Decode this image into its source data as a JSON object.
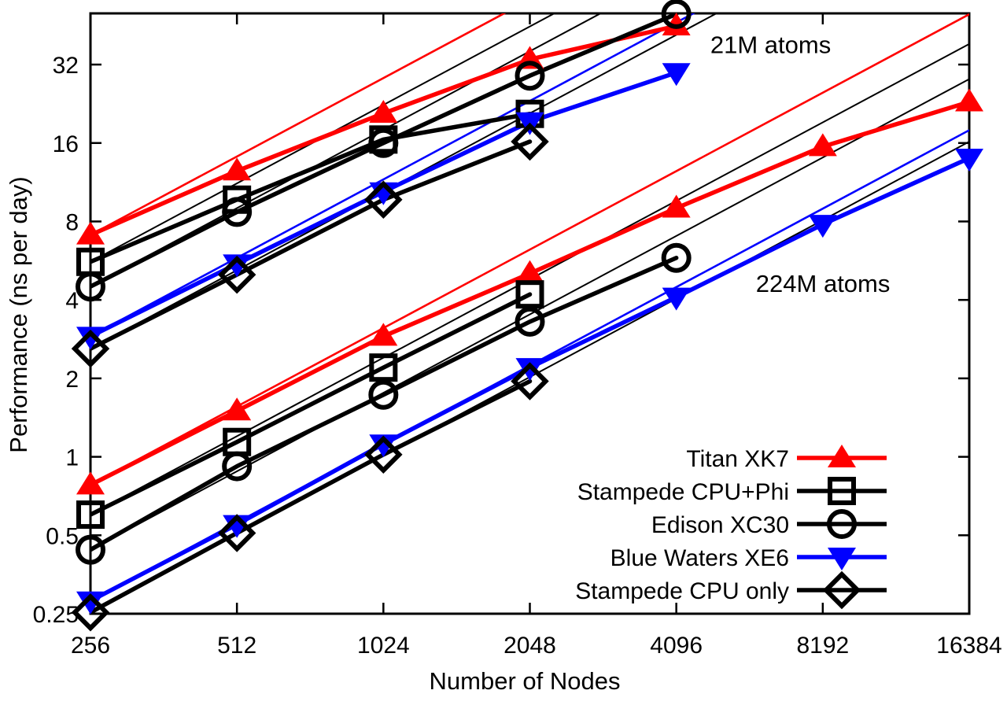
{
  "chart_data": {
    "type": "line",
    "title": "",
    "xlabel": "Number of Nodes",
    "ylabel": "Performance (ns per day)",
    "x_scale": "log2",
    "y_scale": "log2",
    "x_range": [
      256,
      16384
    ],
    "y_range": [
      0.25,
      50.3
    ],
    "x_ticks": [
      256,
      512,
      1024,
      2048,
      4096,
      8192,
      16384
    ],
    "y_ticks": [
      0.25,
      0.5,
      1,
      2,
      4,
      8,
      16,
      32
    ],
    "grid": false,
    "ideal_scaling_reference_lines": "thin line per series, linear speedup from the 256-node point",
    "legend_position": "inside-bottom-right",
    "legend": [
      "Titan XK7",
      "Stampede CPU+Phi",
      "Edison XC30",
      "Blue Waters XE6",
      "Stampede CPU only"
    ],
    "annotations": [
      {
        "label": "21M atoms",
        "x": 6400,
        "y": 38.0
      },
      {
        "label": "224M atoms",
        "x": 8200,
        "y": 4.6
      }
    ],
    "series_styles": {
      "Titan XK7": {
        "color": "#ff0000",
        "marker": "triangle-up-filled"
      },
      "Stampede CPU+Phi": {
        "color": "#000000",
        "marker": "square-open"
      },
      "Edison XC30": {
        "color": "#000000",
        "marker": "circle-open"
      },
      "Blue Waters XE6": {
        "color": "#0000ff",
        "marker": "triangle-down-filled"
      },
      "Stampede CPU only": {
        "color": "#000000",
        "marker": "diamond-open"
      }
    },
    "groups": [
      {
        "name": "21M atoms",
        "series": [
          {
            "name": "Titan XK7",
            "x": [
              256,
              512,
              1024,
              2048,
              4096
            ],
            "y": [
              7.1,
              12.5,
              20.8,
              33.5,
              45
            ]
          },
          {
            "name": "Stampede CPU+Phi",
            "x": [
              256,
              512,
              1024,
              2048
            ],
            "y": [
              5.6,
              9.7,
              16.5,
              20.7
            ]
          },
          {
            "name": "Edison XC30",
            "x": [
              256,
              512,
              1024,
              2048,
              4096
            ],
            "y": [
              4.5,
              8.7,
              16.0,
              29.0,
              50
            ]
          },
          {
            "name": "Blue Waters XE6",
            "x": [
              256,
              512,
              1024,
              2048,
              4096
            ],
            "y": [
              2.9,
              5.5,
              10.4,
              19.3,
              29.8
            ]
          },
          {
            "name": "Stampede CPU only",
            "x": [
              256,
              512,
              1024,
              2048
            ],
            "y": [
              2.6,
              5.0,
              9.7,
              16.2
            ]
          }
        ]
      },
      {
        "name": "224M atoms",
        "series": [
          {
            "name": "Titan XK7",
            "x": [
              256,
              512,
              1024,
              2048,
              4096,
              8192,
              16384
            ],
            "y": [
              0.78,
              1.5,
              2.9,
              5.05,
              9.0,
              15.5,
              23
            ]
          },
          {
            "name": "Stampede CPU+Phi",
            "x": [
              256,
              512,
              1024,
              2048
            ],
            "y": [
              0.6,
              1.14,
              2.2,
              4.2
            ]
          },
          {
            "name": "Edison XC30",
            "x": [
              256,
              512,
              1024,
              2048,
              4096
            ],
            "y": [
              0.44,
              0.92,
              1.73,
              3.3,
              5.8
            ]
          },
          {
            "name": "Blue Waters XE6",
            "x": [
              256,
              512,
              1024,
              2048,
              4096,
              8192,
              16384
            ],
            "y": [
              0.28,
              0.55,
              1.12,
              2.2,
              4.1,
              7.8,
              14
            ]
          },
          {
            "name": "Stampede CPU only",
            "x": [
              256,
              512,
              1024,
              2048
            ],
            "y": [
              0.253,
              0.51,
              1.02,
              1.95
            ]
          }
        ]
      }
    ]
  }
}
